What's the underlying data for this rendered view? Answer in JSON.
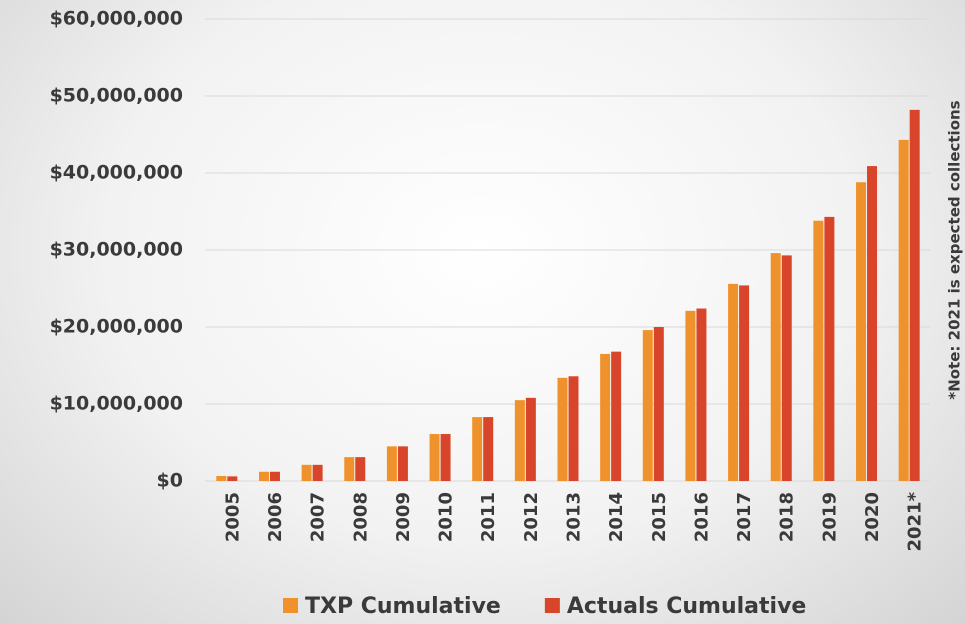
{
  "chart_data": {
    "type": "bar",
    "categories": [
      "2005",
      "2006",
      "2007",
      "2008",
      "2009",
      "2010",
      "2011",
      "2012",
      "2013",
      "2014",
      "2015",
      "2016",
      "2017",
      "2018",
      "2019",
      "2020",
      "2021*"
    ],
    "series": [
      {
        "name": "TXP Cumulative",
        "color": "#f0922b",
        "values": [
          650000,
          1200000,
          2100000,
          3100000,
          4500000,
          6100000,
          8300000,
          10500000,
          13400000,
          16500000,
          19600000,
          22100000,
          25600000,
          29600000,
          33800000,
          38800000,
          44300000
        ]
      },
      {
        "name": "Actuals Cumulative",
        "color": "#d9452a",
        "values": [
          600000,
          1200000,
          2100000,
          3100000,
          4500000,
          6100000,
          8300000,
          10800000,
          13600000,
          16800000,
          20000000,
          22400000,
          25400000,
          29300000,
          34300000,
          40900000,
          48200000
        ]
      }
    ],
    "ylim": [
      0,
      60000000
    ],
    "yticks": [
      {
        "value": 0,
        "label": "$0"
      },
      {
        "value": 10000000,
        "label": "$10,000,000"
      },
      {
        "value": 20000000,
        "label": "$20,000,000"
      },
      {
        "value": 30000000,
        "label": "$30,000,000"
      },
      {
        "value": 40000000,
        "label": "$40,000,000"
      },
      {
        "value": 50000000,
        "label": "$50,000,000"
      },
      {
        "value": 60000000,
        "label": "$60,000,000"
      }
    ],
    "grid": true,
    "legend": "bottom",
    "annotation": "*Note: 2021 is expected collections"
  }
}
